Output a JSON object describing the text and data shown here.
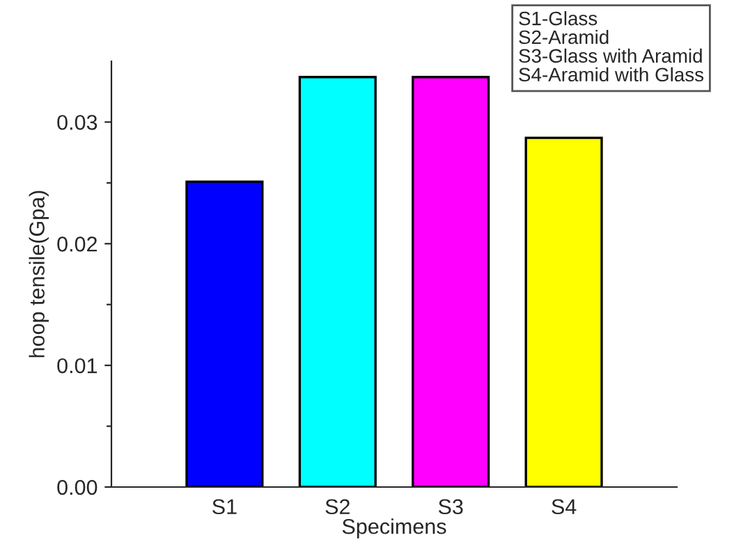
{
  "chart_data": {
    "type": "bar",
    "xlabel": "Specimens",
    "ylabel": "hoop tensile(Gpa)",
    "categories": [
      "S1",
      "S2",
      "S3",
      "S4"
    ],
    "values": [
      0.0251,
      0.0337,
      0.0337,
      0.0287
    ],
    "colors": [
      "#0000ff",
      "#00ffff",
      "#ff00ff",
      "#ffff00"
    ],
    "ylim": [
      0,
      0.035
    ],
    "yticks": [
      {
        "value": 0,
        "label": "0.00"
      },
      {
        "value": 0.005,
        "label": null
      },
      {
        "value": 0.01,
        "label": "0.01"
      },
      {
        "value": 0.015,
        "label": null
      },
      {
        "value": 0.02,
        "label": "0.02"
      },
      {
        "value": 0.025,
        "label": null
      },
      {
        "value": 0.03,
        "label": "0.03"
      }
    ],
    "annotations": [
      "S1-Glass",
      "S2-Aramid",
      "S3-Glass with Aramid",
      "S4-Aramid with Glass"
    ],
    "grid": false
  }
}
